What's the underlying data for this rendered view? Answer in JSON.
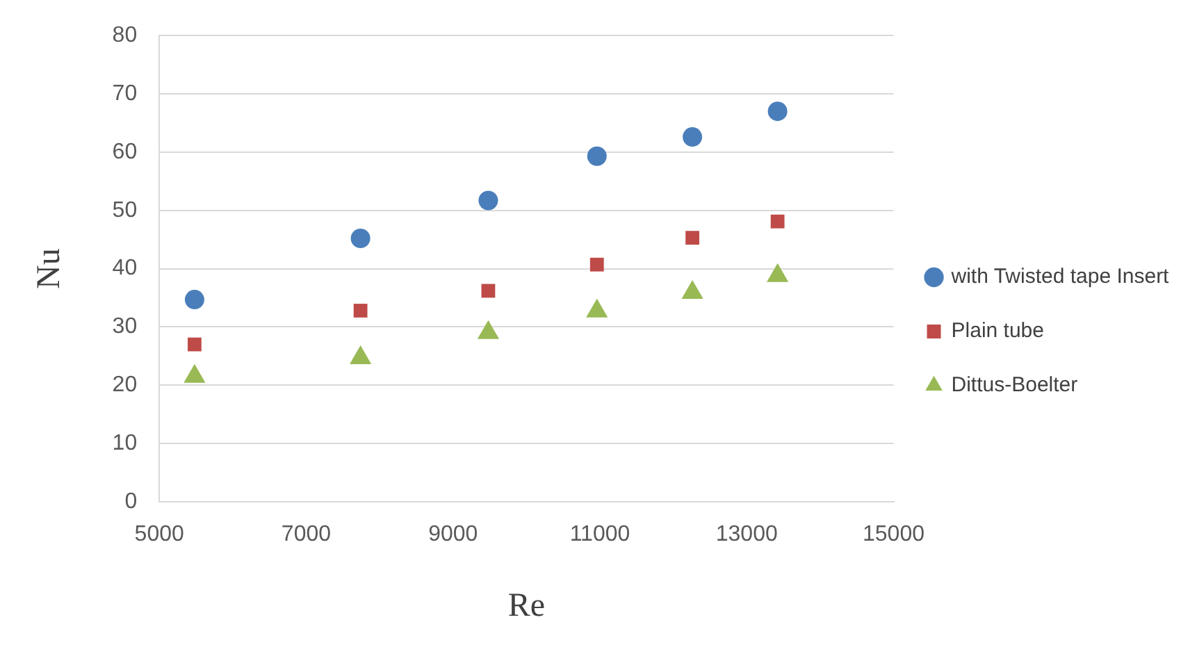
{
  "chart_data": {
    "type": "scatter",
    "xlabel": "Re",
    "ylabel": "Nu",
    "xlim": [
      5000,
      15000
    ],
    "xticks": [
      5000,
      7000,
      9000,
      11000,
      13000,
      15000
    ],
    "ylim": [
      0,
      80
    ],
    "yticks": [
      0,
      10,
      20,
      30,
      40,
      50,
      60,
      70,
      80
    ],
    "grid": "y",
    "legend": "right",
    "x": [
      5480,
      7740,
      9480,
      10960,
      12260,
      13420
    ],
    "series": [
      {
        "name": "with Twisted tape Insert",
        "color": "#4a7ebb",
        "marker": "circle",
        "values": [
          34.7,
          45.2,
          51.7,
          59.3,
          62.6,
          67.0
        ]
      },
      {
        "name": "Plain tube",
        "color": "#be4b48",
        "marker": "square",
        "values": [
          27.0,
          32.8,
          36.2,
          40.7,
          45.3,
          48.1
        ]
      },
      {
        "name": "Dittus-Boelter",
        "color": "#98b954",
        "marker": "triangle",
        "values": [
          21.5,
          24.7,
          29.0,
          32.7,
          35.9,
          38.8
        ]
      }
    ]
  }
}
